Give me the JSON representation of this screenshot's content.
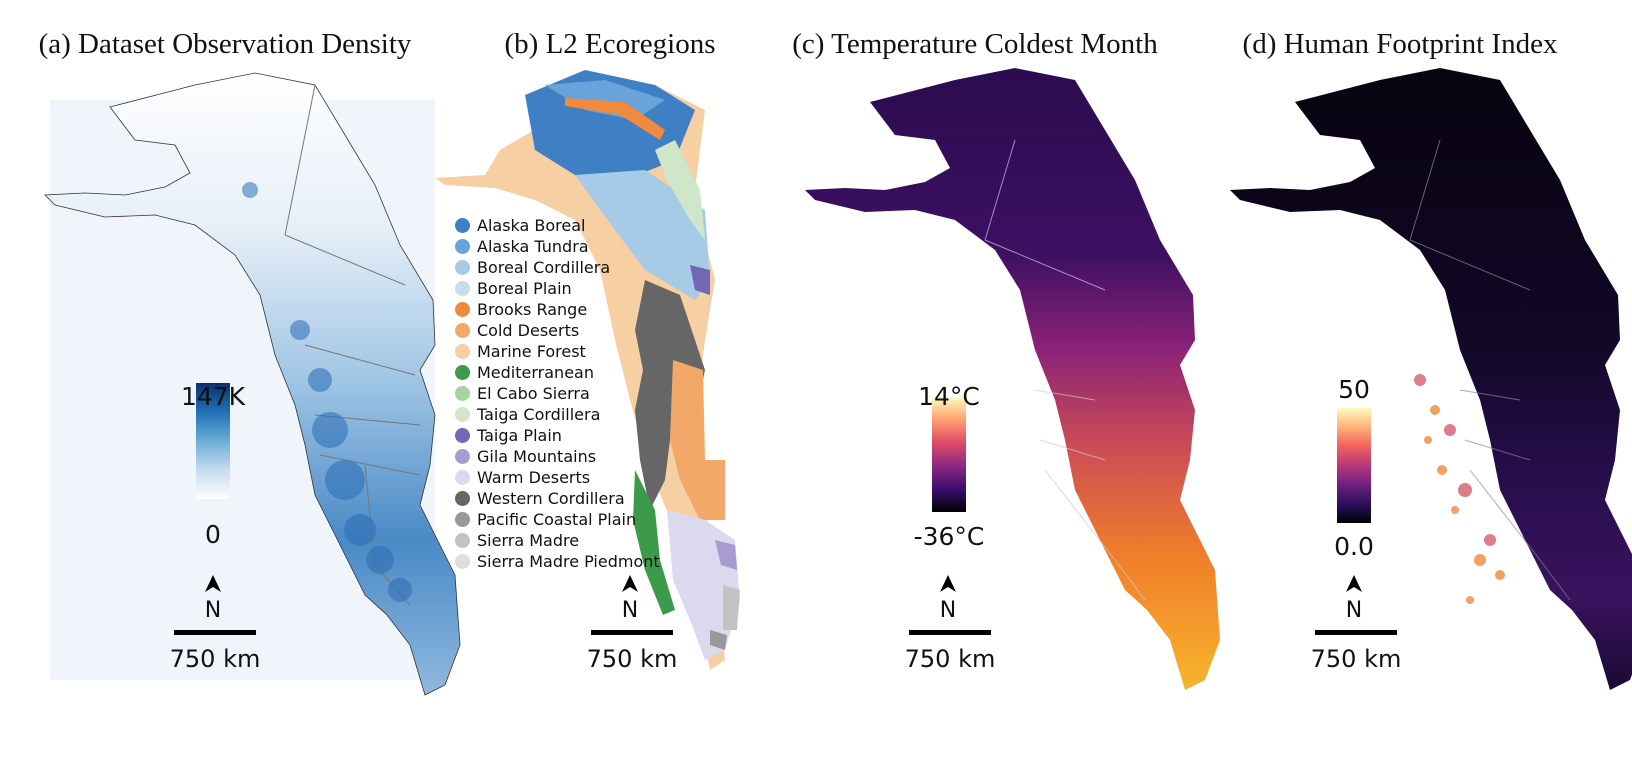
{
  "panels": [
    {
      "title": "(a) Dataset Observation Density",
      "colorbar": {
        "max": "147K",
        "min": "0",
        "colors": [
          "#ffffff",
          "#c6dbef",
          "#6baed6",
          "#2171b5",
          "#08306b"
        ]
      }
    },
    {
      "title": "(b) L2 Ecoregions"
    },
    {
      "title": "(c) Temperature Coldest Month",
      "colorbar": {
        "max": "14°C",
        "min": "-36°C",
        "colors": [
          "#000004",
          "#3b0f70",
          "#8c2981",
          "#de4968",
          "#fe9f6d",
          "#fcfdbf"
        ]
      }
    },
    {
      "title": "(d) Human Footprint Index",
      "colorbar": {
        "max": "50",
        "min": "0.0",
        "colors": [
          "#000004",
          "#2c115f",
          "#721f81",
          "#b73779",
          "#f1605d",
          "#feb078",
          "#fcfdbf"
        ]
      }
    }
  ],
  "north_label": "N",
  "scale_label": "750 km",
  "legend": [
    {
      "label": "Alaska Boreal",
      "color": "#3f7fc4"
    },
    {
      "label": "Alaska Tundra",
      "color": "#6aa3d9"
    },
    {
      "label": "Boreal Cordillera",
      "color": "#a6cbe6"
    },
    {
      "label": "Boreal Plain",
      "color": "#c8dcef"
    },
    {
      "label": "Brooks Range",
      "color": "#f08a3c"
    },
    {
      "label": "Cold Deserts",
      "color": "#f2a868"
    },
    {
      "label": "Marine Forest",
      "color": "#f6cfa3"
    },
    {
      "label": "Mediterranean",
      "color": "#3b9b4a"
    },
    {
      "label": "El Cabo Sierra",
      "color": "#a6d39e"
    },
    {
      "label": "Taiga Cordillera",
      "color": "#cfe6c8"
    },
    {
      "label": "Taiga Plain",
      "color": "#7367b6"
    },
    {
      "label": "Gila Mountains",
      "color": "#a79bd2"
    },
    {
      "label": "Warm Deserts",
      "color": "#dbd9ee"
    },
    {
      "label": "Western Cordillera",
      "color": "#666666"
    },
    {
      "label": "Pacific Coastal Plain",
      "color": "#999999"
    },
    {
      "label": "Sierra Madre",
      "color": "#c2c2c2"
    },
    {
      "label": "Sierra Madre Piedmont",
      "color": "#dedede"
    }
  ]
}
